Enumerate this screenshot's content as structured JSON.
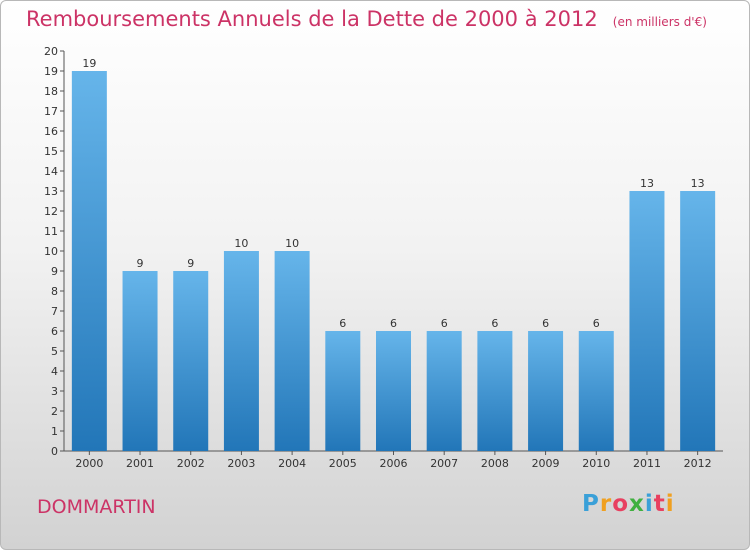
{
  "title": "Remboursements Annuels de la Dette de 2000 à 2012",
  "subtitle": "(en milliers d'€)",
  "commune": "DOMMARTIN",
  "logo": {
    "text": "Proxiti",
    "colors": [
      "#3aa0d8",
      "#f0a020",
      "#e84060",
      "#40b040",
      "#3aa0d8",
      "#e84060",
      "#f0a020"
    ]
  },
  "colors": {
    "bar_top": "#66b5ea",
    "bar_bottom": "#2276b8",
    "accent": "#cc3366"
  },
  "chart_data": {
    "type": "bar",
    "title": "Remboursements Annuels de la Dette de 2000 à 2012",
    "subtitle": "(en milliers d'€)",
    "categories": [
      "2000",
      "2001",
      "2002",
      "2003",
      "2004",
      "2005",
      "2006",
      "2007",
      "2008",
      "2009",
      "2010",
      "2011",
      "2012"
    ],
    "values": [
      19,
      9,
      9,
      10,
      10,
      6,
      6,
      6,
      6,
      6,
      6,
      13,
      13
    ],
    "data_labels": [
      "19",
      "9",
      "9",
      "10",
      "10",
      "6",
      "6",
      "6",
      "6",
      "6",
      "6",
      "13",
      "13"
    ],
    "yticks": [
      "0",
      "1",
      "2",
      "3",
      "4",
      "5",
      "6",
      "7",
      "8",
      "9",
      "10",
      "11",
      "12",
      "13",
      "14",
      "15",
      "16",
      "17",
      "18",
      "19",
      "20"
    ],
    "ylim": [
      0,
      20
    ],
    "grid": false
  }
}
